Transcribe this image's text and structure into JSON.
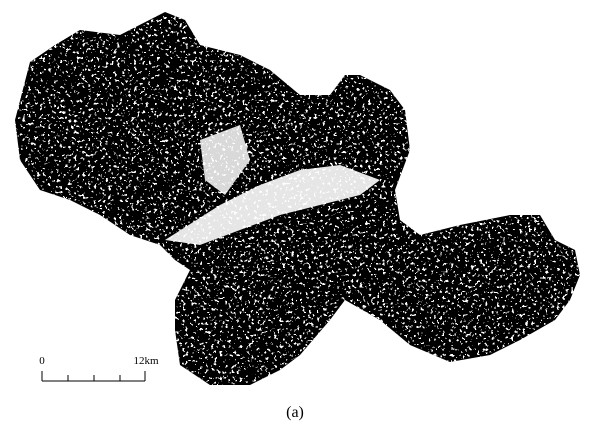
{
  "scale_bar": {
    "start": "0",
    "end": "12km"
  },
  "caption": "(a)"
}
